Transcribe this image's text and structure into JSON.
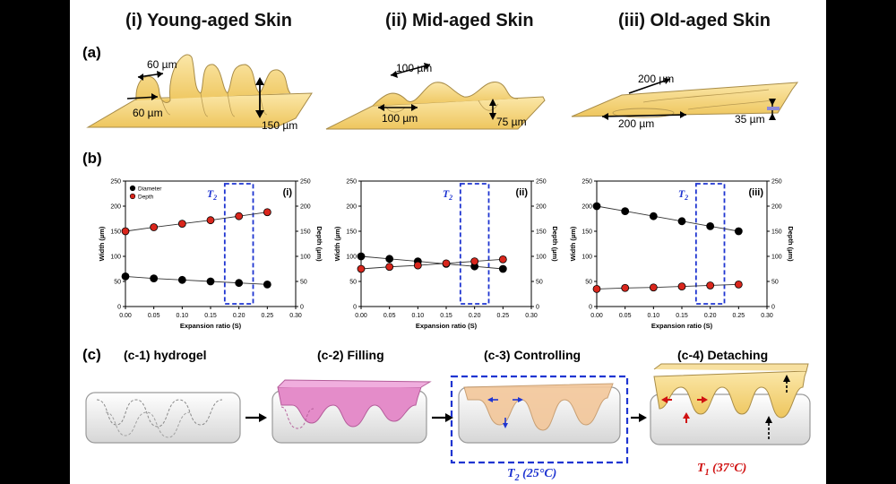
{
  "titles": [
    "(i) Young-aged Skin",
    "(ii) Mid-aged Skin",
    "(iii) Old-aged Skin"
  ],
  "section_labels": {
    "a": "(a)",
    "b": "(b)",
    "c": "(c)"
  },
  "skin_annotations": {
    "young": {
      "top": "60 µm",
      "left": "60 µm",
      "depth": "150 µm"
    },
    "mid": {
      "top": "100 µm",
      "left": "100 µm",
      "depth": "75 µm"
    },
    "old": {
      "top": "200 µm",
      "left": "200 µm",
      "depth": "35 µm"
    }
  },
  "chart_data": [
    {
      "type": "scatter",
      "panel_label": "(i)",
      "x": [
        0.0,
        0.05,
        0.1,
        0.15,
        0.2,
        0.25
      ],
      "series": [
        {
          "name": "Diameter",
          "axis": "left",
          "color": "#000000",
          "values": [
            60,
            56,
            53,
            50,
            47,
            44
          ]
        },
        {
          "name": "Depth",
          "axis": "right",
          "color": "#d9261c",
          "values": [
            150,
            158,
            165,
            172,
            180,
            188
          ]
        }
      ],
      "xlabel": "Expansion ratio (S)",
      "ylabel": "Width (µm)",
      "y2label": "Depth (µm)",
      "xlim": [
        0,
        0.3
      ],
      "ylim": [
        0,
        250
      ],
      "y2lim": [
        0,
        250
      ],
      "xticks": [
        "0.00",
        "0.05",
        "0.10",
        "0.15",
        "0.20",
        "0.25",
        "0.30"
      ],
      "yticks": [
        "0",
        "50",
        "100",
        "150",
        "200",
        "250"
      ],
      "highlight": {
        "label": "T2",
        "x_range": [
          0.175,
          0.225
        ]
      },
      "legend": "top-left"
    },
    {
      "type": "scatter",
      "panel_label": "(ii)",
      "x": [
        0.0,
        0.05,
        0.1,
        0.15,
        0.2,
        0.25
      ],
      "series": [
        {
          "name": "Diameter",
          "axis": "left",
          "color": "#000000",
          "values": [
            100,
            95,
            90,
            85,
            80,
            75
          ]
        },
        {
          "name": "Depth",
          "axis": "right",
          "color": "#d9261c",
          "values": [
            75,
            79,
            82,
            86,
            90,
            94
          ]
        }
      ],
      "xlabel": "Expansion ratio (S)",
      "ylabel": "Width (µm)",
      "y2label": "Depth (µm)",
      "xlim": [
        0,
        0.3
      ],
      "ylim": [
        0,
        250
      ],
      "y2lim": [
        0,
        250
      ],
      "xticks": [
        "0.00",
        "0.05",
        "0.10",
        "0.15",
        "0.20",
        "0.25",
        "0.30"
      ],
      "yticks": [
        "0",
        "50",
        "100",
        "150",
        "200",
        "250"
      ],
      "highlight": {
        "label": "T2",
        "x_range": [
          0.175,
          0.225
        ]
      }
    },
    {
      "type": "scatter",
      "panel_label": "(iii)",
      "x": [
        0.0,
        0.05,
        0.1,
        0.15,
        0.2,
        0.25
      ],
      "series": [
        {
          "name": "Diameter",
          "axis": "left",
          "color": "#000000",
          "values": [
            200,
            190,
            180,
            170,
            160,
            150
          ]
        },
        {
          "name": "Depth",
          "axis": "right",
          "color": "#d9261c",
          "values": [
            35,
            37,
            38,
            40,
            42,
            44
          ]
        }
      ],
      "xlabel": "Expansion ratio (S)",
      "ylabel": "Width (µm)",
      "y2label": "Depth (µm)",
      "xlim": [
        0,
        0.3
      ],
      "ylim": [
        0,
        250
      ],
      "y2lim": [
        0,
        250
      ],
      "xticks": [
        "0.00",
        "0.05",
        "0.10",
        "0.15",
        "0.20",
        "0.25",
        "0.30"
      ],
      "yticks": [
        "0",
        "50",
        "100",
        "150",
        "200",
        "250"
      ],
      "highlight": {
        "label": "T2",
        "x_range": [
          0.175,
          0.225
        ]
      }
    }
  ],
  "steps": [
    {
      "label": "(c-1) hydrogel"
    },
    {
      "label": "(c-2) Filling"
    },
    {
      "label": "(c-3) Controlling",
      "temp_label": "T2 (25°C)"
    },
    {
      "label": "(c-4) Detaching",
      "temp_label": "T1 (37°C)"
    }
  ],
  "colors": {
    "skin": "#f3cf6e",
    "skin_edge": "#b89a52",
    "filling": "#e48cc9",
    "controlling": "#f3c79a",
    "highlight": "#1f35d1",
    "depth": "#d9261c",
    "hot": "#d01010"
  }
}
